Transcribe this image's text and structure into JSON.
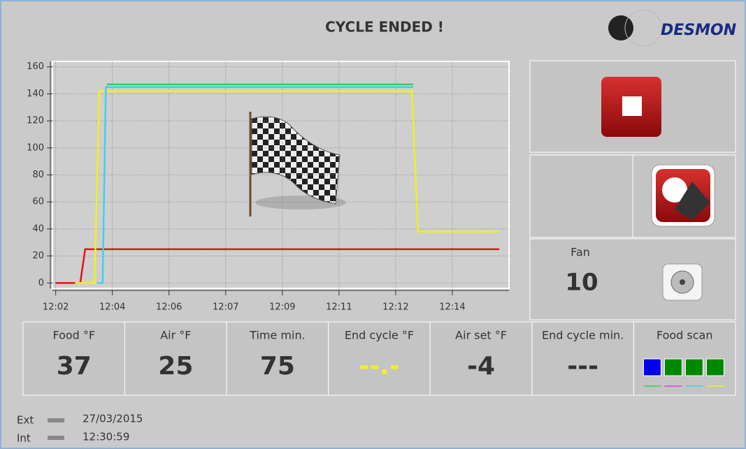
{
  "header": {
    "title": "CYCLE ENDED !",
    "brand": "DESMON"
  },
  "chart_data": {
    "type": "line",
    "xlim": [
      1.9,
      16.0
    ],
    "xticks": [
      {
        "value": 2,
        "label": "12:02"
      },
      {
        "value": 3.75,
        "label": "12:04"
      },
      {
        "value": 5.5,
        "label": "12:06"
      },
      {
        "value": 7.25,
        "label": "12:07"
      },
      {
        "value": 9,
        "label": "12:09"
      },
      {
        "value": 10.75,
        "label": "12:11"
      },
      {
        "value": 12.5,
        "label": "12:12"
      },
      {
        "value": 14.25,
        "label": "12:14"
      }
    ],
    "ylim": [
      -4,
      164
    ],
    "yticks": [
      0,
      20,
      40,
      60,
      80,
      100,
      120,
      140,
      160
    ],
    "grid": true,
    "series": [
      {
        "color": "#e81010",
        "x": [
          2.0,
          2.76,
          2.91,
          15.7
        ],
        "values": [
          0,
          0,
          25,
          25
        ]
      },
      {
        "color": "#f0f020",
        "x": [
          2.6,
          3.2,
          3.35,
          13.0,
          13.19,
          15.7
        ],
        "values": [
          0,
          0,
          142,
          142,
          38,
          38
        ]
      },
      {
        "color": "#40d0f0",
        "x": [
          3.3,
          3.45,
          3.55,
          13.04
        ],
        "values": [
          0,
          0,
          145,
          145
        ]
      },
      {
        "color": "#30d060",
        "x": [
          3.58,
          13.04
        ],
        "values": [
          147,
          147
        ]
      }
    ]
  },
  "fan": {
    "label": "Fan",
    "value": "10"
  },
  "tiles": [
    {
      "label": "Food °F",
      "value": "37"
    },
    {
      "label": "Air °F",
      "value": "25"
    },
    {
      "label": "Time min.",
      "value": "75"
    },
    {
      "label": "End cycle °F",
      "value": "--.-"
    },
    {
      "label": "Air set °F",
      "value": "-4"
    },
    {
      "label": "End cycle min.",
      "value": "---"
    },
    {
      "label": "Food scan"
    }
  ],
  "footer": {
    "ext": "Ext",
    "date": "27/03/2015",
    "int": "Int",
    "time": "12:30:59"
  }
}
